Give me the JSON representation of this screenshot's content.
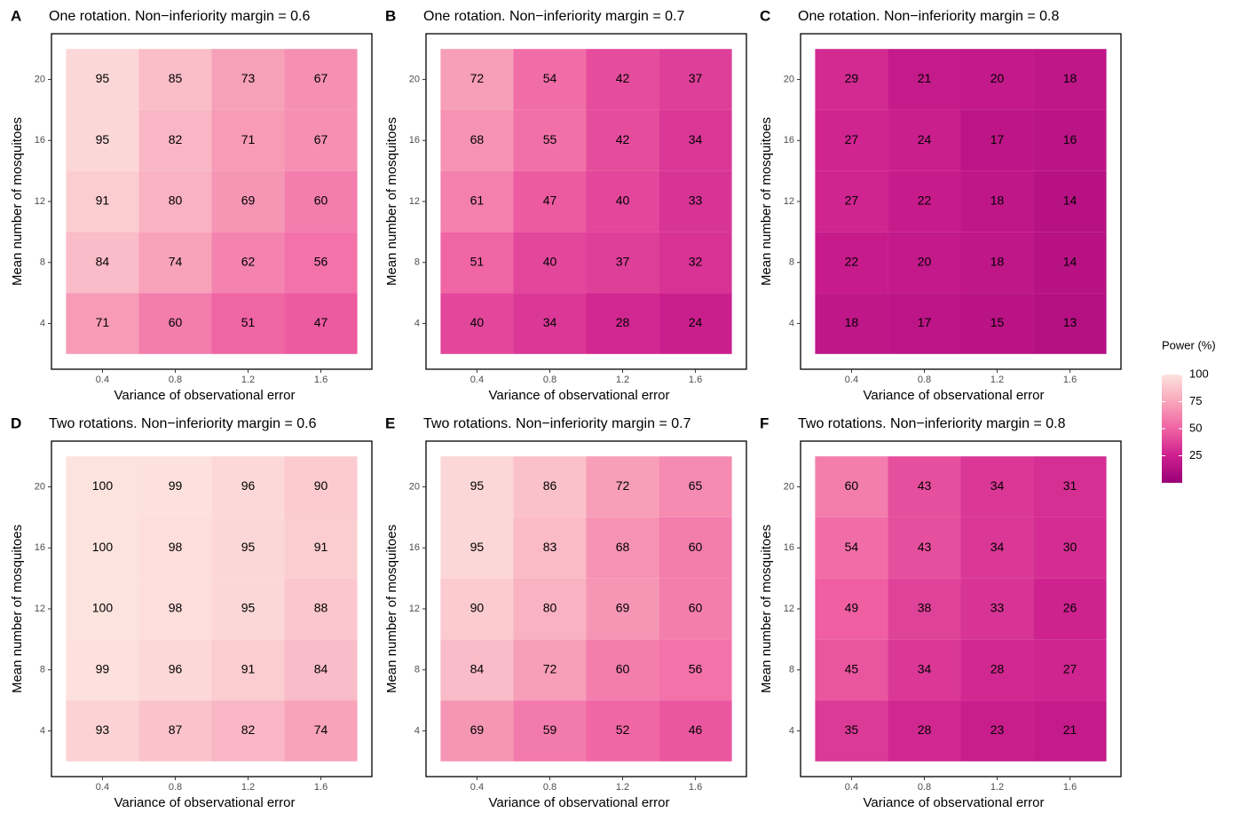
{
  "chart_data": [
    {
      "type": "heatmap",
      "panel": "A",
      "title": "One rotation. Non−inferiority margin = 0.6",
      "x_label": "Variance of observational error",
      "y_label": "Mean number of mosquitoes",
      "x": [
        0.4,
        0.8,
        1.2,
        1.6
      ],
      "y": [
        4,
        8,
        12,
        16,
        20
      ],
      "xlim": [
        0.12,
        1.88
      ],
      "ylim": [
        1,
        23
      ],
      "xticks": [
        0.4,
        0.8,
        1.2,
        1.6
      ],
      "yticks": [
        4,
        8,
        12,
        16,
        20
      ],
      "values": [
        [
          71,
          60,
          51,
          47
        ],
        [
          84,
          74,
          62,
          56
        ],
        [
          91,
          80,
          69,
          60
        ],
        [
          95,
          82,
          71,
          67
        ],
        [
          95,
          85,
          73,
          67
        ]
      ]
    },
    {
      "type": "heatmap",
      "panel": "B",
      "title": "One rotation. Non−inferiority margin = 0.7",
      "x_label": "Variance of observational error",
      "y_label": "Mean number of mosquitoes",
      "x": [
        0.4,
        0.8,
        1.2,
        1.6
      ],
      "y": [
        4,
        8,
        12,
        16,
        20
      ],
      "xlim": [
        0.12,
        1.88
      ],
      "ylim": [
        1,
        23
      ],
      "xticks": [
        0.4,
        0.8,
        1.2,
        1.6
      ],
      "yticks": [
        4,
        8,
        12,
        16,
        20
      ],
      "values": [
        [
          40,
          34,
          28,
          24
        ],
        [
          51,
          40,
          37,
          32
        ],
        [
          61,
          47,
          40,
          33
        ],
        [
          68,
          55,
          42,
          34
        ],
        [
          72,
          54,
          42,
          37
        ]
      ]
    },
    {
      "type": "heatmap",
      "panel": "C",
      "title": "One rotation. Non−inferiority margin = 0.8",
      "x_label": "Variance of observational error",
      "y_label": "Mean number of mosquitoes",
      "x": [
        0.4,
        0.8,
        1.2,
        1.6
      ],
      "y": [
        4,
        8,
        12,
        16,
        20
      ],
      "xlim": [
        0.12,
        1.88
      ],
      "ylim": [
        1,
        23
      ],
      "xticks": [
        0.4,
        0.8,
        1.2,
        1.6
      ],
      "yticks": [
        4,
        8,
        12,
        16,
        20
      ],
      "values": [
        [
          18,
          17,
          15,
          13
        ],
        [
          22,
          20,
          18,
          14
        ],
        [
          27,
          22,
          18,
          14
        ],
        [
          27,
          24,
          17,
          16
        ],
        [
          29,
          21,
          20,
          18
        ]
      ]
    },
    {
      "type": "heatmap",
      "panel": "D",
      "title": "Two rotations. Non−inferiority margin = 0.6",
      "x_label": "Variance of observational error",
      "y_label": "Mean number of mosquitoes",
      "x": [
        0.4,
        0.8,
        1.2,
        1.6
      ],
      "y": [
        4,
        8,
        12,
        16,
        20
      ],
      "xlim": [
        0.12,
        1.88
      ],
      "ylim": [
        1,
        23
      ],
      "xticks": [
        0.4,
        0.8,
        1.2,
        1.6
      ],
      "yticks": [
        4,
        8,
        12,
        16,
        20
      ],
      "values": [
        [
          93,
          87,
          82,
          74
        ],
        [
          99,
          96,
          91,
          84
        ],
        [
          100,
          98,
          95,
          88
        ],
        [
          100,
          98,
          95,
          91
        ],
        [
          100,
          99,
          96,
          90
        ]
      ]
    },
    {
      "type": "heatmap",
      "panel": "E",
      "title": "Two rotations. Non−inferiority margin = 0.7",
      "x_label": "Variance of observational error",
      "y_label": "Mean number of mosquitoes",
      "x": [
        0.4,
        0.8,
        1.2,
        1.6
      ],
      "y": [
        4,
        8,
        12,
        16,
        20
      ],
      "xlim": [
        0.12,
        1.88
      ],
      "ylim": [
        1,
        23
      ],
      "xticks": [
        0.4,
        0.8,
        1.2,
        1.6
      ],
      "yticks": [
        4,
        8,
        12,
        16,
        20
      ],
      "values": [
        [
          69,
          59,
          52,
          46
        ],
        [
          84,
          72,
          60,
          56
        ],
        [
          90,
          80,
          69,
          60
        ],
        [
          95,
          83,
          68,
          60
        ],
        [
          95,
          86,
          72,
          65
        ]
      ]
    },
    {
      "type": "heatmap",
      "panel": "F",
      "title": "Two rotations. Non−inferiority margin = 0.8",
      "x_label": "Variance of observational error",
      "y_label": "Mean number of mosquitoes",
      "x": [
        0.4,
        0.8,
        1.2,
        1.6
      ],
      "y": [
        4,
        8,
        12,
        16,
        20
      ],
      "xlim": [
        0.12,
        1.88
      ],
      "ylim": [
        1,
        23
      ],
      "xticks": [
        0.4,
        0.8,
        1.2,
        1.6
      ],
      "yticks": [
        4,
        8,
        12,
        16,
        20
      ],
      "values": [
        [
          35,
          28,
          23,
          21
        ],
        [
          45,
          34,
          28,
          27
        ],
        [
          49,
          38,
          33,
          26
        ],
        [
          54,
          43,
          34,
          30
        ],
        [
          60,
          43,
          34,
          31
        ]
      ]
    }
  ],
  "color_scale": {
    "title": "Power (%)",
    "lim": [
      0,
      100
    ],
    "ticks": [
      25,
      50,
      75,
      100
    ],
    "colors": [
      "#9a0078",
      "#cd1f8e",
      "#f062a3",
      "#f8a6bb",
      "#fde3de"
    ]
  }
}
